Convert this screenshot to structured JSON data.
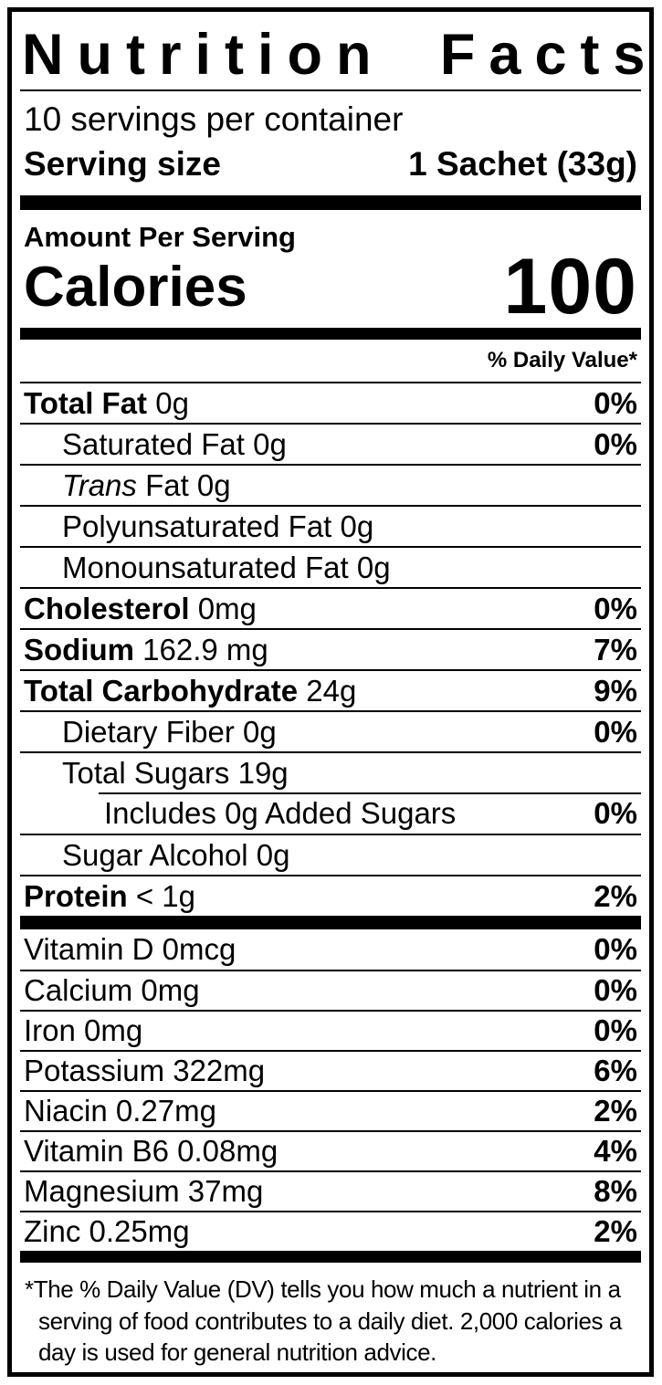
{
  "title": "Nutrition Facts",
  "servings_per_container": "10 servings per container",
  "serving_size": {
    "label": "Serving size",
    "value": "1 Sachet (33g)"
  },
  "amount_per_serving": "Amount Per Serving",
  "calories": {
    "label": "Calories",
    "value": "100"
  },
  "daily_value_header": "% Daily Value*",
  "nutrients": [
    {
      "name": "Total Fat",
      "amount": "0g",
      "dv": "0%",
      "indent": 0,
      "bold": true
    },
    {
      "name": "Saturated Fat",
      "amount": "0g",
      "dv": "0%",
      "indent": 1,
      "bold": false
    },
    {
      "name_italic": "Trans",
      "name": " Fat",
      "amount": "0g",
      "dv": "",
      "indent": 1,
      "bold": false
    },
    {
      "name": "Polyunsaturated Fat",
      "amount": "0g",
      "dv": "",
      "indent": 1,
      "bold": false
    },
    {
      "name": "Monounsaturated Fat",
      "amount": "0g",
      "dv": "",
      "indent": 1,
      "bold": false
    },
    {
      "name": "Cholesterol",
      "amount": "0mg",
      "dv": "0%",
      "indent": 0,
      "bold": true
    },
    {
      "name": "Sodium",
      "amount": "162.9 mg",
      "dv": "7%",
      "indent": 0,
      "bold": true
    },
    {
      "name": "Total Carbohydrate",
      "amount": "24g",
      "dv": "9%",
      "indent": 0,
      "bold": true
    },
    {
      "name": "Dietary Fiber",
      "amount": "0g",
      "dv": "0%",
      "indent": 1,
      "bold": false
    },
    {
      "name": "Total Sugars",
      "amount": "19g",
      "dv": "",
      "indent": 1,
      "bold": false
    },
    {
      "name": "Includes 0g Added Sugars",
      "amount": "",
      "dv": "0%",
      "indent": 2,
      "bold": false,
      "separator": "indented"
    },
    {
      "name": "Sugar Alcohol",
      "amount": "0g",
      "dv": "",
      "indent": 1,
      "bold": false
    },
    {
      "name": "Protein",
      "amount": "< 1g",
      "dv": "2%",
      "indent": 0,
      "bold": true
    }
  ],
  "micronutrients": [
    {
      "name": "Vitamin D",
      "amount": "0mcg",
      "dv": "0%"
    },
    {
      "name": "Calcium",
      "amount": "0mg",
      "dv": "0%"
    },
    {
      "name": "Iron",
      "amount": "0mg",
      "dv": "0%"
    },
    {
      "name": "Potassium",
      "amount": "322mg",
      "dv": "6%"
    },
    {
      "name": "Niacin",
      "amount": "0.27mg",
      "dv": "2%"
    },
    {
      "name": "Vitamin B6",
      "amount": "0.08mg",
      "dv": "4%"
    },
    {
      "name": "Magnesium",
      "amount": "37mg",
      "dv": "8%"
    },
    {
      "name": "Zinc",
      "amount": "0.25mg",
      "dv": "2%"
    }
  ],
  "footnote": "*The % Daily Value (DV) tells you how much a nutrient in a serving of food contributes to a daily diet. 2,000 calories a day is used for general nutrition advice.",
  "colors": {
    "ink": "#000000",
    "paper": "#ffffff"
  }
}
